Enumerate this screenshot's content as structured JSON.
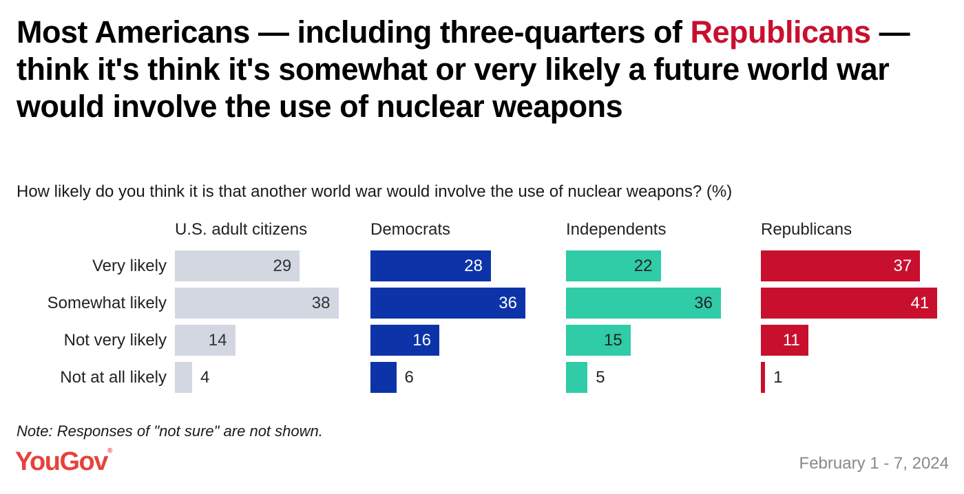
{
  "title": {
    "part1": "Most Americans — including three-quarters of ",
    "highlight": "Republicans",
    "part2": " — think it's think it's somewhat or very likely a future world war would involve the use of nuclear weapons"
  },
  "colors": {
    "highlight": "#c8102e",
    "logo": "#e8413b"
  },
  "note": "Note: Responses of \"not sure\" are not shown.",
  "source": {
    "logo_text": "YouGov",
    "logo_mark": "®",
    "date": "February 1 - 7, 2024"
  },
  "chart_data": {
    "type": "bar",
    "orientation": "horizontal",
    "subtitle": "How likely do you think it is that another world war would involve the use of nuclear weapons? (%)",
    "categories": [
      "Very likely",
      "Somewhat likely",
      "Not very likely",
      "Not at all likely"
    ],
    "unit": "%",
    "series": [
      {
        "name": "U.S. adult citizens",
        "color": "#d3d7e1",
        "label_color": "#333333",
        "values": [
          29,
          38,
          14,
          4
        ]
      },
      {
        "name": "Democrats",
        "color": "#0c34a8",
        "label_color": "#ffffff",
        "values": [
          28,
          36,
          16,
          6
        ]
      },
      {
        "name": "Independents",
        "color": "#30cba7",
        "label_color": "#222222",
        "values": [
          22,
          36,
          15,
          5
        ]
      },
      {
        "name": "Republicans",
        "color": "#c8102e",
        "label_color": "#ffffff",
        "values": [
          37,
          41,
          11,
          1
        ]
      }
    ],
    "xlim": [
      0,
      45
    ],
    "grid": false,
    "legend": "none"
  }
}
